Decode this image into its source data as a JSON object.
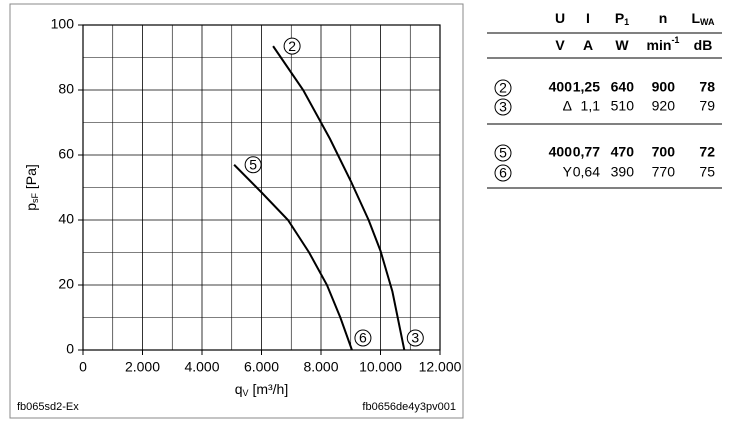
{
  "chart_data": {
    "type": "line",
    "x_label": {
      "main": "q",
      "sub": "V",
      "rest": " [m³/h]"
    },
    "y_label": {
      "main": "p",
      "sub": "sF",
      "rest": " [Pa]"
    },
    "xlim": [
      0,
      12000
    ],
    "ylim": [
      0,
      100
    ],
    "xticks": [
      0,
      {
        "value": 2000,
        "label": "2.000"
      },
      {
        "value": 4000,
        "label": "4.000"
      },
      {
        "value": 6000,
        "label": "6.000"
      },
      {
        "value": 8000,
        "label": "8.000"
      },
      {
        "value": 10000,
        "label": "10.000"
      },
      {
        "value": 12000,
        "label": "12.000"
      }
    ],
    "yticks": [
      0,
      20,
      40,
      60,
      80,
      100
    ],
    "x_minor_ticks": [
      1000,
      3000,
      5000,
      7000,
      9000,
      11000
    ],
    "y_minor_ticks": [
      10,
      30,
      50,
      70,
      90
    ],
    "grid": true,
    "series": [
      {
        "name": "2",
        "end_label": "3",
        "color": "#000000",
        "x": [
          6390,
          7400,
          8300,
          9000,
          9600,
          10000,
          10400,
          10800
        ],
        "values": [
          93.5,
          80,
          65,
          52,
          40,
          30.5,
          18,
          0
        ]
      },
      {
        "name": "5",
        "end_label": "6",
        "color": "#000000",
        "x": [
          5080,
          6000,
          6890,
          7600,
          8200,
          8650,
          9040
        ],
        "values": [
          57,
          48.5,
          40,
          30,
          20,
          10,
          0
        ]
      }
    ],
    "footnote_left": "fb065sd2-Ex",
    "footnote_right": "fb0656de4y3pv001"
  },
  "table": {
    "header": [
      [
        "U"
      ],
      [
        "I"
      ],
      [
        "P",
        "1"
      ],
      [
        "n"
      ],
      [
        "L",
        "WA"
      ]
    ],
    "units": [
      [
        "V"
      ],
      [
        "A"
      ],
      [
        "W"
      ],
      [
        "min",
        "-1"
      ],
      [
        "dB"
      ]
    ],
    "rows": [
      [
        "2",
        "400",
        "1,25",
        "640",
        "900",
        "78"
      ],
      [
        "3",
        "Δ",
        "1,1",
        "510",
        "920",
        "79"
      ],
      [
        "5",
        "400",
        "0,77",
        "470",
        "700",
        "72"
      ],
      [
        "6",
        "Y",
        "0,64",
        "390",
        "770",
        "75"
      ]
    ],
    "bold_rows": [
      true,
      false,
      true,
      false
    ]
  }
}
